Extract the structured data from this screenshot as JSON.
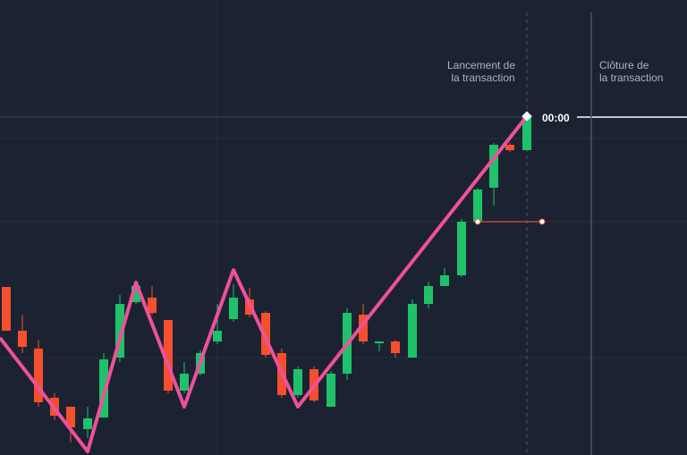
{
  "open_label": [
    "Lancement de",
    "la transaction"
  ],
  "close_label": [
    "Clôture de",
    "la transaction"
  ],
  "time_tag": "00:00"
}
